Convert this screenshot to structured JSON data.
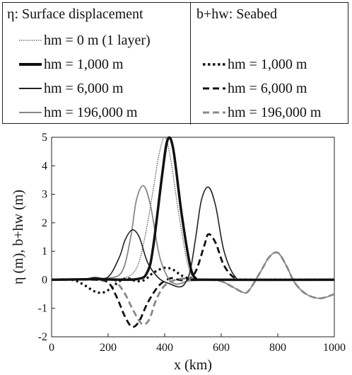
{
  "legend": {
    "left_title": "η: Surface displacement",
    "right_title": "b+hw: Seabed",
    "left_entries": [
      {
        "label": "hm = 0 m (1 layer)",
        "style": "dotted-thin",
        "color": "#555555"
      },
      {
        "label": "hm = 1,000 m",
        "style": "solid-thick",
        "color": "#111111"
      },
      {
        "label": "hm = 6,000 m",
        "style": "solid",
        "color": "#222222"
      },
      {
        "label": "hm = 196,000 m",
        "style": "solid-gray",
        "color": "#888888"
      }
    ],
    "right_entries": [
      {
        "label": "hm = 1,000 m",
        "style": "dotted-thick",
        "color": "#111111"
      },
      {
        "label": "hm = 6,000 m",
        "style": "dashed",
        "color": "#111111"
      },
      {
        "label": "hm = 196,000 m",
        "style": "dashed-gray",
        "color": "#888888"
      }
    ]
  },
  "chart_data": {
    "type": "line",
    "xlabel": "x (km)",
    "ylabel": "η (m), b+hw (m)",
    "xlim": [
      0,
      1000
    ],
    "ylim": [
      -2,
      5
    ],
    "xticks": [
      0,
      200,
      400,
      600,
      800,
      1000
    ],
    "yticks": [
      -2,
      -1,
      0,
      1,
      2,
      3,
      4,
      5
    ],
    "grid": false,
    "series": [
      {
        "name": "η, hm = 0 m (1 layer)",
        "style": "dotted-thin",
        "color": "#555555",
        "x": [
          0,
          150,
          250,
          300,
          330,
          360,
          380,
          400,
          420,
          450,
          480,
          500,
          520,
          1000
        ],
        "y": [
          0,
          0,
          0.05,
          0.4,
          1.5,
          3.2,
          4.4,
          5.0,
          4.3,
          2.3,
          0.6,
          0.1,
          0,
          0
        ]
      },
      {
        "name": "η, hm = 1,000 m",
        "style": "solid-thick",
        "color": "#111111",
        "x": [
          0,
          150,
          300,
          340,
          360,
          390,
          410,
          430,
          460,
          490,
          510,
          540,
          1000
        ],
        "y": [
          0,
          0.02,
          0.02,
          0.3,
          1.2,
          3.6,
          4.9,
          4.6,
          2.3,
          0.5,
          0.05,
          0,
          0
        ]
      },
      {
        "name": "η, hm = 6,000 m",
        "style": "solid",
        "color": "#222222",
        "x": [
          0,
          100,
          150,
          200,
          240,
          260,
          285,
          310,
          340,
          380,
          420,
          450,
          470,
          490,
          510,
          530,
          555,
          580,
          610,
          650,
          700,
          1000
        ],
        "y": [
          0,
          0,
          0.08,
          0.1,
          0.8,
          1.4,
          1.75,
          1.5,
          0.6,
          0.05,
          -0.15,
          -0.25,
          -0.15,
          0.3,
          1.5,
          2.8,
          3.25,
          2.6,
          1.0,
          0.1,
          0,
          0
        ]
      },
      {
        "name": "η, hm = 196,000 m",
        "style": "solid-gray",
        "color": "#888888",
        "x": [
          0,
          150,
          200,
          250,
          280,
          300,
          325,
          350,
          380,
          410,
          440,
          480,
          520,
          560,
          600,
          640,
          680,
          700,
          740,
          770,
          800,
          830,
          860,
          900,
          950,
          1000
        ],
        "y": [
          0,
          0,
          0.05,
          0.3,
          1.5,
          2.8,
          3.3,
          2.6,
          0.9,
          0.1,
          -0.15,
          -0.05,
          0.02,
          0,
          -0.05,
          -0.25,
          -0.45,
          -0.35,
          0.3,
          0.8,
          0.95,
          0.5,
          -0.1,
          -0.5,
          -0.65,
          -0.5
        ]
      },
      {
        "name": "b+hw, hm = 1,000 m",
        "style": "dotted-thick",
        "color": "#111111",
        "x": [
          0,
          70,
          110,
          150,
          180,
          210,
          240,
          270,
          300,
          330,
          360,
          400,
          430,
          460,
          500,
          540,
          1000
        ],
        "y": [
          0,
          0,
          -0.15,
          -0.4,
          -0.45,
          -0.3,
          -0.05,
          0.05,
          -0.05,
          0,
          0.25,
          0.42,
          0.35,
          0.15,
          0,
          0,
          0
        ]
      },
      {
        "name": "b+hw, hm = 6,000 m",
        "style": "dashed",
        "color": "#111111",
        "x": [
          0,
          150,
          200,
          230,
          260,
          285,
          310,
          340,
          380,
          420,
          450,
          480,
          510,
          540,
          555,
          580,
          610,
          650,
          700,
          1000
        ],
        "y": [
          0,
          0,
          -0.1,
          -0.6,
          -1.3,
          -1.65,
          -1.45,
          -0.8,
          -0.2,
          0.05,
          0,
          0,
          0.3,
          1.2,
          1.6,
          1.3,
          0.5,
          0.05,
          0,
          0
        ]
      },
      {
        "name": "b+hw, hm = 196,000 m",
        "style": "dashed-gray",
        "color": "#888888",
        "x": [
          0,
          200,
          230,
          260,
          290,
          320,
          345,
          370,
          400,
          440,
          480,
          520,
          560,
          600,
          640,
          680,
          700,
          740,
          770,
          800,
          830,
          860,
          900,
          950,
          1000
        ],
        "y": [
          0,
          0,
          -0.1,
          -0.5,
          -1.1,
          -1.55,
          -1.4,
          -0.7,
          -0.2,
          0,
          0.05,
          0.02,
          0,
          -0.05,
          -0.25,
          -0.45,
          -0.35,
          0.3,
          0.8,
          0.95,
          0.5,
          -0.1,
          -0.5,
          -0.65,
          -0.5
        ]
      }
    ]
  }
}
